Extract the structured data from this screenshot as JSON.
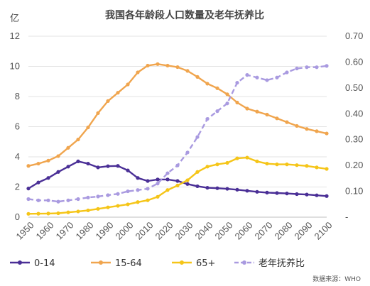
{
  "chart_data": {
    "type": "line",
    "title": "我国各年龄段人口数量及老年抚养比",
    "y_left_unit": "亿",
    "y_left_range": [
      0,
      12
    ],
    "y_left_ticks": [
      "0",
      "2",
      "4",
      "6",
      "8",
      "10",
      "12"
    ],
    "y_right_range": [
      0,
      0.7
    ],
    "y_right_ticks": [
      "-",
      "0.10",
      "0.20",
      "0.30",
      "0.40",
      "0.50",
      "0.60",
      "0.70"
    ],
    "x_range": [
      1950,
      2100
    ],
    "x_ticks": [
      "1950",
      "1960",
      "1970",
      "1980",
      "1990",
      "2000",
      "2010",
      "2020",
      "2030",
      "2040",
      "2050",
      "2060",
      "2070",
      "2080",
      "2090",
      "2100"
    ],
    "x": [
      1950,
      1955,
      1960,
      1965,
      1970,
      1975,
      1980,
      1985,
      1990,
      1995,
      2000,
      2005,
      2010,
      2015,
      2020,
      2025,
      2030,
      2035,
      2040,
      2045,
      2050,
      2055,
      2060,
      2065,
      2070,
      2075,
      2080,
      2085,
      2090,
      2095,
      2100
    ],
    "grid": "horizontal",
    "legend_position": "bottom-left",
    "source": "数据来源：WHO",
    "series": [
      {
        "name": "0-14",
        "axis": "left",
        "color": "#4a2f96",
        "style": "solid",
        "values": [
          1.9,
          2.3,
          2.6,
          3.0,
          3.35,
          3.7,
          3.55,
          3.3,
          3.38,
          3.4,
          3.1,
          2.6,
          2.4,
          2.5,
          2.5,
          2.4,
          2.2,
          2.05,
          1.95,
          1.92,
          1.88,
          1.82,
          1.75,
          1.68,
          1.63,
          1.6,
          1.57,
          1.53,
          1.5,
          1.45,
          1.4
        ]
      },
      {
        "name": "15-64",
        "axis": "left",
        "color": "#f0a54e",
        "style": "solid",
        "values": [
          3.4,
          3.55,
          3.75,
          4.05,
          4.6,
          5.15,
          5.95,
          6.9,
          7.7,
          8.25,
          8.8,
          9.6,
          10.05,
          10.15,
          10.05,
          9.95,
          9.7,
          9.3,
          8.85,
          8.55,
          8.15,
          7.6,
          7.2,
          7.0,
          6.8,
          6.55,
          6.3,
          6.05,
          5.85,
          5.7,
          5.55
        ]
      },
      {
        "name": "65+",
        "axis": "left",
        "color": "#f5c518",
        "style": "solid",
        "values": [
          0.22,
          0.23,
          0.24,
          0.26,
          0.32,
          0.38,
          0.45,
          0.55,
          0.65,
          0.75,
          0.85,
          1.0,
          1.12,
          1.35,
          1.8,
          2.1,
          2.45,
          3.0,
          3.35,
          3.5,
          3.6,
          3.9,
          3.95,
          3.7,
          3.55,
          3.5,
          3.5,
          3.45,
          3.4,
          3.3,
          3.2
        ]
      },
      {
        "name": "老年抚养比",
        "axis": "right",
        "color": "#a99ae0",
        "style": "dashed",
        "values": [
          0.07,
          0.065,
          0.065,
          0.06,
          0.065,
          0.07,
          0.076,
          0.08,
          0.085,
          0.09,
          0.1,
          0.105,
          0.11,
          0.13,
          0.17,
          0.2,
          0.25,
          0.31,
          0.38,
          0.41,
          0.44,
          0.52,
          0.55,
          0.54,
          0.53,
          0.54,
          0.56,
          0.575,
          0.58,
          0.58,
          0.585
        ]
      }
    ]
  }
}
